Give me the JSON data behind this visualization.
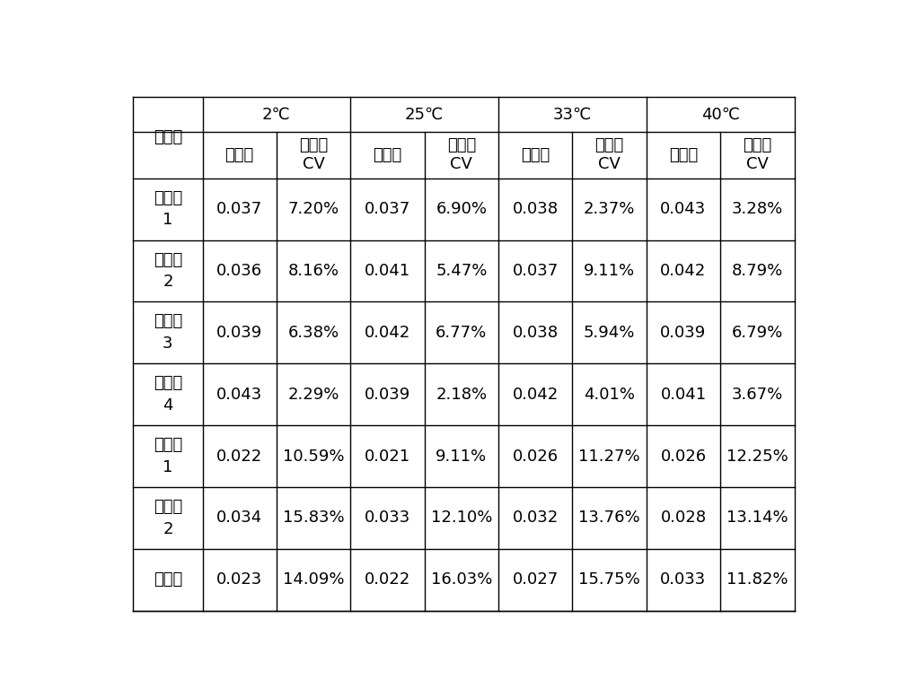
{
  "temp_headers": [
    "2℃",
    "25℃",
    "33℃",
    "40℃"
  ],
  "sub_headers": [
    "平均值",
    "重复性\nCV"
  ],
  "row_header_label": "试验组",
  "rows": [
    {
      "label_line1": "实施例",
      "label_line2": "1",
      "data": [
        "0.037",
        "7.20%",
        "0.037",
        "6.90%",
        "0.038",
        "2.37%",
        "0.043",
        "3.28%"
      ]
    },
    {
      "label_line1": "实施例",
      "label_line2": "2",
      "data": [
        "0.036",
        "8.16%",
        "0.041",
        "5.47%",
        "0.037",
        "9.11%",
        "0.042",
        "8.79%"
      ]
    },
    {
      "label_line1": "实施例",
      "label_line2": "3",
      "data": [
        "0.039",
        "6.38%",
        "0.042",
        "6.77%",
        "0.038",
        "5.94%",
        "0.039",
        "6.79%"
      ]
    },
    {
      "label_line1": "实施例",
      "label_line2": "4",
      "data": [
        "0.043",
        "2.29%",
        "0.039",
        "2.18%",
        "0.042",
        "4.01%",
        "0.041",
        "3.67%"
      ]
    },
    {
      "label_line1": "对比例",
      "label_line2": "1",
      "data": [
        "0.022",
        "10.59%",
        "0.021",
        "9.11%",
        "0.026",
        "11.27%",
        "0.026",
        "12.25%"
      ]
    },
    {
      "label_line1": "对比例",
      "label_line2": "2",
      "data": [
        "0.034",
        "15.83%",
        "0.033",
        "12.10%",
        "0.032",
        "13.76%",
        "0.028",
        "13.14%"
      ]
    },
    {
      "label_line1": "对比例",
      "label_line2": "",
      "data": [
        "0.023",
        "14.09%",
        "0.022",
        "16.03%",
        "0.027",
        "15.75%",
        "0.033",
        "11.82%"
      ]
    }
  ],
  "background_color": "#ffffff",
  "line_color": "#000000",
  "text_color": "#000000",
  "font_size": 13,
  "figwidth": 10.0,
  "figheight": 7.77,
  "dpi": 100
}
